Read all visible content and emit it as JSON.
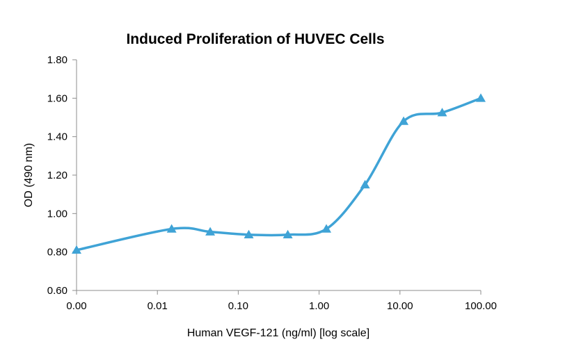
{
  "chart_data": {
    "type": "line",
    "title": "Induced Proliferation of HUVEC Cells",
    "xlabel": "Human VEGF-121 (ng/ml) [log scale]",
    "ylabel": "OD (490 nm)",
    "x_scale": "log",
    "x_tick_labels": [
      "0.00",
      "0.01",
      "0.10",
      "1.00",
      "10.00",
      "100.00"
    ],
    "x_ticks": [
      0.001,
      0.01,
      0.1,
      1,
      10,
      100
    ],
    "xlim": [
      0.001,
      100
    ],
    "y_tick_labels": [
      "0.60",
      "0.80",
      "1.00",
      "1.20",
      "1.40",
      "1.60",
      "1.80"
    ],
    "y_ticks": [
      0.6,
      0.8,
      1.0,
      1.2,
      1.4,
      1.6,
      1.8
    ],
    "ylim": [
      0.6,
      1.8
    ],
    "grid": false,
    "legend": "none",
    "series": [
      {
        "color": "#3fa3d6",
        "marker": "triangle",
        "smooth": true,
        "x": [
          0.001,
          0.015,
          0.045,
          0.135,
          0.41,
          1.23,
          3.7,
          11.1,
          33.3,
          100
        ],
        "y": [
          0.81,
          0.92,
          0.905,
          0.89,
          0.89,
          0.92,
          1.15,
          1.48,
          1.525,
          1.6
        ]
      }
    ]
  }
}
